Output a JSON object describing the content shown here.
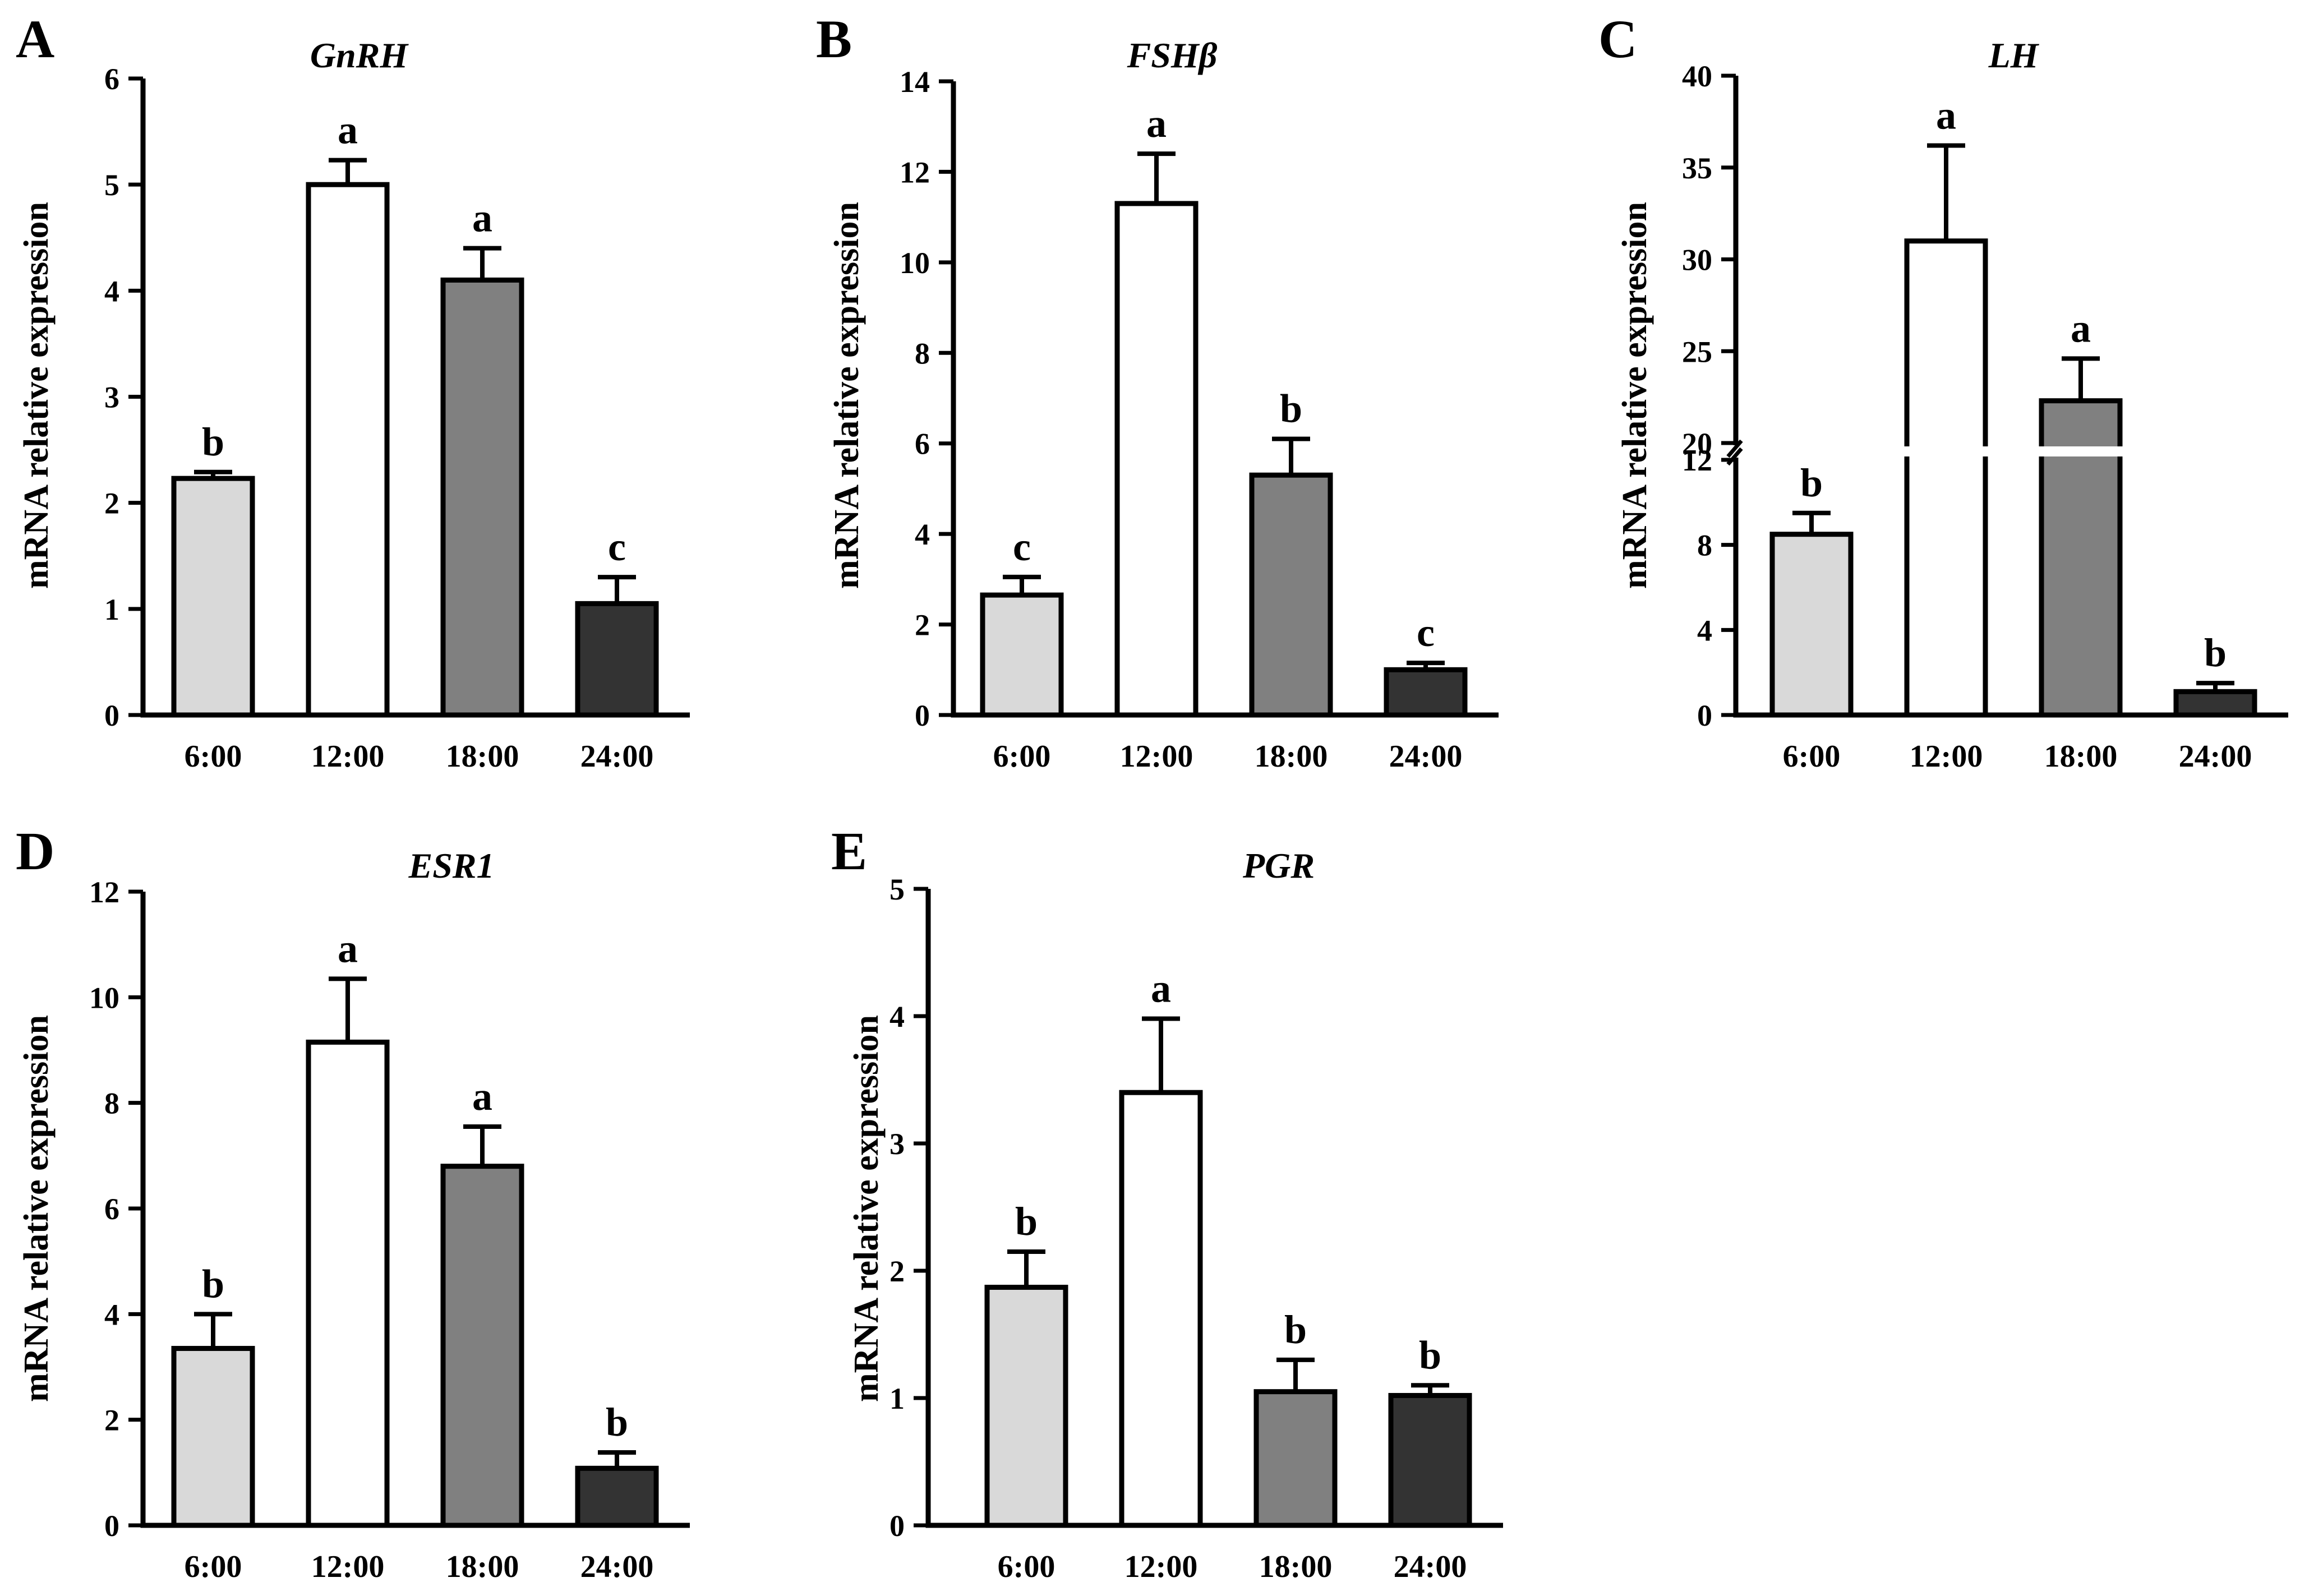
{
  "chart_data": [
    {
      "type": "bar",
      "panel": "A",
      "title": "GnRH",
      "xlabel": "",
      "ylabel": "mRNA relative expression",
      "categories": [
        "6:00",
        "12:00",
        "18:00",
        "24:00"
      ],
      "values": [
        2.23,
        5.0,
        4.1,
        1.05
      ],
      "errors": [
        0.06,
        0.23,
        0.3,
        0.25
      ],
      "significance": [
        "b",
        "a",
        "a",
        "c"
      ],
      "colors": [
        "#d9d9d9",
        "#ffffff",
        "#808080",
        "#333333"
      ],
      "ylim": [
        0,
        6
      ],
      "yticks": [
        0,
        1,
        2,
        3,
        4,
        5,
        6
      ],
      "ytick_labels": [
        "0",
        "1",
        "2",
        "3",
        "4",
        "5",
        "6"
      ],
      "grid": false,
      "legend": false
    },
    {
      "type": "bar",
      "panel": "B",
      "title": "FSHβ",
      "xlabel": "",
      "ylabel": "mRNA relative expression",
      "categories": [
        "6:00",
        "12:00",
        "18:00",
        "24:00"
      ],
      "values": [
        2.65,
        11.3,
        5.3,
        1.0
      ],
      "errors": [
        0.4,
        1.1,
        0.8,
        0.15
      ],
      "significance": [
        "c",
        "a",
        "b",
        "c"
      ],
      "colors": [
        "#d9d9d9",
        "#ffffff",
        "#808080",
        "#333333"
      ],
      "ylim": [
        0,
        14
      ],
      "yticks": [
        0,
        2,
        4,
        6,
        8,
        10,
        12,
        14
      ],
      "ytick_labels": [
        "0",
        "2",
        "4",
        "6",
        "8",
        "10",
        "12",
        "14"
      ],
      "grid": false,
      "legend": false
    },
    {
      "type": "bar",
      "panel": "C",
      "title": "LH",
      "xlabel": "",
      "ylabel": "mRNA relative expression",
      "categories": [
        "6:00",
        "12:00",
        "18:00",
        "24:00"
      ],
      "values": [
        8.5,
        31.0,
        22.3,
        1.1
      ],
      "errors": [
        1.0,
        5.2,
        2.3,
        0.4
      ],
      "significance": [
        "b",
        "a",
        "a",
        "b"
      ],
      "colors": [
        "#d9d9d9",
        "#ffffff",
        "#808080",
        "#333333"
      ],
      "axis_break": [
        12,
        20
      ],
      "ylim": [
        0,
        40
      ],
      "yticks": [
        0,
        4,
        8,
        12,
        20,
        25,
        30,
        35,
        40
      ],
      "ytick_labels": [
        "0",
        "4",
        "8",
        "12",
        "20",
        "25",
        "30",
        "35",
        "40"
      ],
      "grid": false,
      "legend": false
    },
    {
      "type": "bar",
      "panel": "D",
      "title": "ESR1",
      "xlabel": "",
      "ylabel": "mRNA relative expression",
      "categories": [
        "6:00",
        "12:00",
        "18:00",
        "24:00"
      ],
      "values": [
        3.35,
        9.15,
        6.8,
        1.08
      ],
      "errors": [
        0.65,
        1.2,
        0.75,
        0.3
      ],
      "significance": [
        "b",
        "a",
        "a",
        "b"
      ],
      "colors": [
        "#d9d9d9",
        "#ffffff",
        "#808080",
        "#333333"
      ],
      "ylim": [
        0,
        12
      ],
      "yticks": [
        0,
        2,
        4,
        6,
        8,
        10,
        12
      ],
      "ytick_labels": [
        "0",
        "2",
        "4",
        "6",
        "8",
        "10",
        "12"
      ],
      "grid": false,
      "legend": false
    },
    {
      "type": "bar",
      "panel": "E",
      "title": "PGR",
      "xlabel": "",
      "ylabel": "mRNA relative expression",
      "categories": [
        "6:00",
        "12:00",
        "18:00",
        "24:00"
      ],
      "values": [
        1.87,
        3.4,
        1.05,
        1.02
      ],
      "errors": [
        0.28,
        0.58,
        0.25,
        0.08
      ],
      "significance": [
        "b",
        "a",
        "b",
        "b"
      ],
      "colors": [
        "#d9d9d9",
        "#ffffff",
        "#808080",
        "#333333"
      ],
      "ylim": [
        0,
        5
      ],
      "yticks": [
        0,
        1,
        2,
        3,
        4,
        5
      ],
      "ytick_labels": [
        "0",
        "1",
        "2",
        "3",
        "4",
        "5"
      ],
      "grid": false,
      "legend": false
    }
  ]
}
